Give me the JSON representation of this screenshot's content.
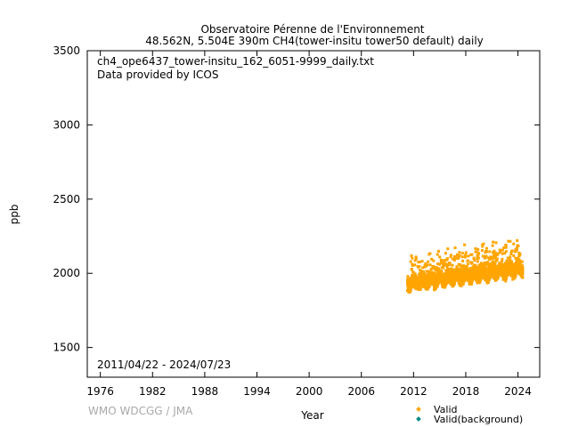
{
  "chart_data": {
    "type": "scatter",
    "title": "Observatoire Pérenne de l'Environnement",
    "subtitle": "48.562N, 5.504E 390m    CH4(tower-insitu tower50 default) daily",
    "xlabel": "Year",
    "ylabel": "ppb",
    "xlim": [
      1974.5,
      2026.5
    ],
    "ylim": [
      1300,
      3500
    ],
    "x_ticks": [
      "1976",
      "1982",
      "1988",
      "1994",
      "2000",
      "2006",
      "2012",
      "2018",
      "2024"
    ],
    "y_ticks": [
      "1500",
      "2000",
      "2500",
      "3000",
      "3500"
    ],
    "annotations": [
      "ch4_ope6437_tower-insitu_162_6051-9999_daily.txt",
      "Data provided by ICOS",
      "2011/04/22 - 2024/07/23"
    ],
    "legend_position": "bottom-right",
    "series": [
      {
        "name": "Valid",
        "color": "#ffa500",
        "x_range": [
          2011.31,
          2024.56
        ],
        "baseline_start": 1930,
        "baseline_end": 2035,
        "min_approx": 1840,
        "max_approx": 2230,
        "points_approx": 4800
      },
      {
        "name": "Valid(background)",
        "color": "#008b8b",
        "points_approx": 0
      }
    ],
    "grid": false
  },
  "footer": {
    "watermark": "WMO WDCGG / JMA"
  }
}
